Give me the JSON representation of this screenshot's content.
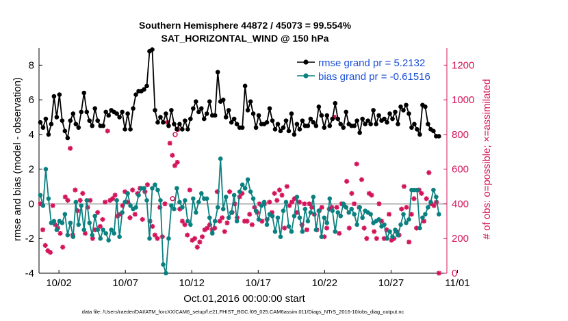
{
  "chart_data": {
    "type": "line",
    "title": "Southern Hemisphere 44872 / 45073 = 99.554%",
    "subtitle": "SAT_HORIZONTAL_WIND @ 150 hPa",
    "xlabel": "Oct.01,2016 00:00:00 start",
    "ylabel": "rmse and bias (model - observation)",
    "y2label": "# of obs: o=possible; ×=assimilated",
    "footnote": "data file: /Users/raeder/DAI/ATM_forcXX/CAM6_setup/f.e21.FHIST_BGC.f09_025.CAM6assim.011/Diags_NTrS_2016-10/obs_diag_output.nc",
    "xlim": [
      0.5,
      31.2
    ],
    "ylim": [
      -4,
      9
    ],
    "y2lim": [
      0,
      1300
    ],
    "x_ticks": [
      2,
      7,
      12,
      17,
      22,
      27,
      32
    ],
    "x_tick_labels": [
      "10/02",
      "10/07",
      "10/12",
      "10/17",
      "10/22",
      "10/27",
      "11/01"
    ],
    "y_ticks": [
      -4,
      -2,
      0,
      2,
      4,
      6,
      8
    ],
    "y2_ticks": [
      0,
      200,
      400,
      600,
      800,
      1000,
      1200
    ],
    "zero_line": true,
    "grid": false,
    "legend_position": "top-right",
    "colors": {
      "rmse": "#000000",
      "bias": "#0b8080",
      "obs": "#d4145a",
      "zero": "#b3b3b3",
      "legend_text": "#1a4fd6"
    },
    "series": [
      {
        "name": "rmse grand pr = 5.2132",
        "marker": "circle",
        "values": [
          4.7,
          4.4,
          4.9,
          4.0,
          4.6,
          6.2,
          5.0,
          6.3,
          4.8,
          4.2,
          3.8,
          4.8,
          5.2,
          4.6,
          4.4,
          5.3,
          6.4,
          5.3,
          4.8,
          4.5,
          5.5,
          4.8,
          4.5,
          4.5,
          5.3,
          5.1,
          5.4,
          5.3,
          5.2,
          5.0,
          5.3,
          4.3,
          5.2,
          4.3,
          5.5,
          6.3,
          6.5,
          6.5,
          6.6,
          6.8,
          8.8,
          8.9,
          5.4,
          4.7,
          5.0,
          4.7,
          5.2,
          4.5,
          5.4,
          4.6,
          4.3,
          4.6,
          4.3,
          4.8,
          4.3,
          4.9,
          5.5,
          5.9,
          5.3,
          5.5,
          4.9,
          5.2,
          5.9,
          5.1,
          5.1,
          7.6,
          5.9,
          6.0,
          5.0,
          5.4,
          4.7,
          4.9,
          4.6,
          4.4,
          4.4,
          6.8,
          5.4,
          5.9,
          5.2,
          4.4,
          5.1,
          4.6,
          4.6,
          4.7,
          5.5,
          4.8,
          4.3,
          4.6,
          4.2,
          4.4,
          4.8,
          4.2,
          5.2,
          4.0,
          4.6,
          4.3,
          4.8,
          4.5,
          4.5,
          4.9,
          4.7,
          4.5,
          5.6,
          5.1,
          4.4,
          5.1,
          4.5,
          4.9,
          5.8,
          4.9,
          4.6,
          4.4,
          5.3,
          4.6,
          4.5,
          4.5,
          4.8,
          4.1,
          4.9,
          4.6,
          4.8,
          4.6,
          5.4,
          4.6,
          5.1,
          4.8,
          4.9,
          4.7,
          5.2,
          4.9,
          5.3,
          4.6,
          5.6,
          5.4,
          5.7,
          5.2,
          4.4,
          4.6,
          4.3,
          4.0,
          5.7,
          5.6,
          4.6,
          4.3,
          4.2,
          3.9,
          3.9
        ]
      },
      {
        "name": "bias grand pr = -0.61516",
        "marker": "circle",
        "values": [
          0.5,
          -0.1,
          2.0,
          0.3,
          -1.1,
          -1.0,
          -1.5,
          -1.0,
          -1.1,
          -0.6,
          -1.8,
          -1.1,
          -1.9,
          0.1,
          -1.2,
          -0.1,
          -1.5,
          0.2,
          -1.1,
          -1.8,
          -0.7,
          -1.5,
          -2.0,
          -1.5,
          -1.7,
          -2.1,
          -1.5,
          -1.7,
          0.2,
          -1.9,
          -0.5,
          0.1,
          0.6,
          -0.1,
          -0.3,
          -0.2,
          0.5,
          0.9,
          0.9,
          0.2,
          -2.0,
          0.9,
          1.1,
          0.8,
          0.2,
          -3.5,
          -4.0,
          -2.0,
          -0.1,
          -0.3,
          0.9,
          0.1,
          -0.2,
          0.2,
          -1.0,
          -1.2,
          0.3,
          -0.5,
          0.1,
          0.6,
          0.3,
          0.3,
          -0.8,
          -1.7,
          -1.0,
          -0.2,
          2.6,
          -0.3,
          0.4,
          -0.8,
          -0.5,
          0.5,
          -1.0,
          0.7,
          1.1,
          0.9,
          1.4,
          0.7,
          0.3,
          -0.4,
          -0.9,
          -0.1,
          0.1,
          -1.2,
          -0.6,
          -0.7,
          -1.6,
          -0.8,
          -1.9,
          -0.4,
          0.1,
          -1.3,
          -1.6,
          -0.7,
          0.4,
          -0.8,
          -1.6,
          -0.3,
          -1.0,
          -0.5,
          0.4,
          -1.5,
          -0.4,
          -1.9,
          -0.8,
          -1.1,
          0.3,
          -0.4,
          -1.6,
          -0.5,
          -0.7,
          0.0,
          -0.2,
          -0.5,
          -0.3,
          -0.6,
          -1.2,
          -0.2,
          -0.8,
          -0.4,
          -0.5,
          -0.6,
          -1.1,
          -1.0,
          -0.9,
          -1.3,
          -1.2,
          -2.0,
          -1.6,
          -1.9,
          -1.5,
          -1.8,
          -1.2,
          -0.6,
          -1.1,
          -0.9,
          0.8,
          0.8,
          0.8,
          -1.4,
          -0.8,
          -0.6,
          -0.2,
          0.1,
          0.8,
          0.4,
          -0.6
        ]
      },
      {
        "name": "assimilated obs",
        "marker": "asterisk",
        "axis": "right",
        "values": [
          400,
          250,
          160,
          130,
          120,
          390,
          280,
          260,
          230,
          150,
          440,
          420,
          720,
          220,
          480,
          360,
          420,
          460,
          230,
          380,
          420,
          200,
          250,
          350,
          270,
          310,
          410,
          820,
          420,
          430,
          450,
          330,
          340,
          390,
          470,
          410,
          320,
          480,
          340,
          460,
          490,
          310,
          470,
          510,
          300,
          270,
          220,
          200,
          380,
          210,
          400,
          870,
          750,
          680,
          620,
          640,
          370,
          300,
          280,
          220,
          480,
          190,
          200,
          150,
          180,
          210,
          250,
          260,
          280,
          250,
          260,
          470,
          300,
          320,
          240,
          290,
          470,
          350,
          400,
          320,
          440,
          460,
          300,
          300,
          340,
          280,
          380,
          350,
          400,
          300,
          400,
          310,
          410,
          350,
          460,
          420,
          480,
          450,
          260,
          500,
          390,
          410,
          430,
          350,
          410,
          280,
          400,
          250,
          400,
          380,
          340,
          250,
          360,
          380,
          210,
          260,
          370,
          380,
          900,
          380,
          230,
          400,
          390,
          530,
          260,
          460,
          400,
          630,
          380,
          540,
          260,
          200,
          460,
          450,
          240,
          200,
          400,
          300,
          200,
          250,
          340,
          190,
          200,
          240,
          220,
          370,
          500,
          380,
          180,
          340,
          430,
          260,
          480,
          460,
          300,
          430,
          580,
          400,
          390,
          410,
          0
        ]
      },
      {
        "name": "possible obs",
        "marker": "circle-open",
        "axis": "right",
        "values": [
          800,
          830,
          430
        ],
        "x": [
          10.75,
          10.95,
          10.55
        ]
      }
    ]
  }
}
